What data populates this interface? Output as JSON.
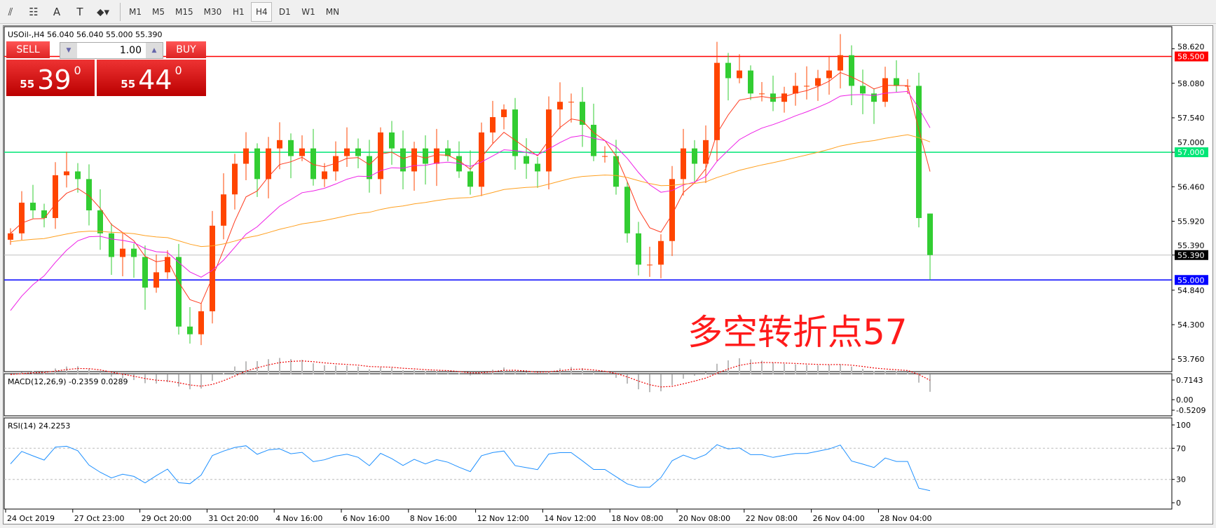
{
  "toolbar": {
    "tools": [
      {
        "name": "elliott-tool-icon",
        "glyph": "⫽"
      },
      {
        "name": "fibonacci-tool-icon",
        "glyph": "☷"
      },
      {
        "name": "text-tool-icon",
        "glyph": "A"
      },
      {
        "name": "text-label-tool-icon",
        "glyph": "T"
      },
      {
        "name": "arrows-tool-icon",
        "glyph": "⬥▾"
      }
    ],
    "timeframes": [
      "M1",
      "M5",
      "M15",
      "M30",
      "H1",
      "H4",
      "D1",
      "W1",
      "MN"
    ],
    "active_timeframe": "H4"
  },
  "chart": {
    "header": "USOil-,H4  56.040 56.040 55.000 55.390",
    "symbol": "USOil-",
    "timeframe": "H4",
    "annotation": "多空转折点57",
    "colors": {
      "bull": "#ff4500",
      "bear": "#32cd32",
      "ma_fast": "#ff3b1f",
      "ma_mid": "#ee1ee6",
      "ma_slow": "#ffa020",
      "res": "#ff0000",
      "pivot": "#00e676",
      "bid": "#c0c0c0",
      "support": "#0000ff"
    },
    "levels": [
      {
        "price": 58.5,
        "label": "58.500",
        "kind": "res"
      },
      {
        "price": 57.0,
        "label": "57.000",
        "kind": "pivot"
      },
      {
        "price": 55.39,
        "label": "55.390",
        "kind": "bid"
      },
      {
        "price": 55.0,
        "label": "55.000",
        "kind": "support"
      }
    ],
    "price_ticks": [
      "58.620",
      "58.080",
      "57.540",
      "57.000",
      "56.460",
      "55.920",
      "55.390",
      "54.840",
      "54.300",
      "53.760"
    ],
    "price_tick_values": [
      58.62,
      58.08,
      57.54,
      57.0,
      56.46,
      55.92,
      55.39,
      54.84,
      54.3,
      53.76
    ],
    "date_labels": [
      "24 Oct 2019",
      "27 Oct 23:00",
      "29 Oct 20:00",
      "31 Oct 20:00",
      "4 Nov 16:00",
      "6 Nov 16:00",
      "8 Nov 16:00",
      "12 Nov 12:00",
      "14 Nov 12:00",
      "18 Nov 08:00",
      "20 Nov 08:00",
      "22 Nov 08:00",
      "26 Nov 04:00",
      "28 Nov 04:00"
    ]
  },
  "trade": {
    "sell_label": "SELL",
    "buy_label": "BUY",
    "lots": "1.00",
    "sell_small": "55",
    "sell_big": "39",
    "sell_pip": "0",
    "buy_small": "55",
    "buy_big": "44",
    "buy_pip": "0"
  },
  "macd": {
    "label": "MACD(12,26,9) -0.2359 0.0289",
    "ticks": [
      "0.7143",
      "0.00",
      "-0.5209"
    ]
  },
  "rsi": {
    "label": "RSI(14) 24.2253",
    "ticks": [
      "100",
      "70",
      "30",
      "0"
    ],
    "levels": [
      70,
      30
    ]
  },
  "chart_data": {
    "type": "candlestick",
    "closes": [
      55.73,
      56.21,
      56.09,
      55.97,
      56.64,
      56.7,
      56.58,
      56.09,
      55.73,
      55.36,
      55.49,
      55.36,
      54.88,
      55.12,
      55.36,
      54.27,
      54.15,
      54.51,
      55.85,
      56.34,
      56.82,
      57.06,
      56.58,
      57.06,
      57.19,
      56.94,
      57.06,
      56.58,
      56.7,
      56.94,
      57.06,
      56.94,
      56.58,
      57.31,
      57.06,
      56.7,
      57.06,
      56.82,
      57.06,
      56.94,
      56.7,
      56.46,
      57.31,
      57.55,
      57.67,
      56.94,
      56.82,
      56.7,
      57.67,
      57.79,
      57.79,
      57.43,
      56.94,
      56.94,
      56.46,
      55.73,
      55.24,
      55.24,
      55.61,
      56.58,
      57.06,
      56.82,
      57.19,
      58.4,
      58.16,
      58.28,
      57.92,
      57.92,
      57.79,
      57.92,
      58.04,
      58.04,
      58.16,
      58.28,
      58.52,
      58.04,
      57.92,
      57.79,
      58.16,
      58.04,
      58.04,
      55.97,
      55.39
    ],
    "last_candle": {
      "open": 56.04,
      "high": 56.04,
      "low": 55.0,
      "close": 55.39
    },
    "ylim": [
      53.6,
      58.8
    ]
  }
}
